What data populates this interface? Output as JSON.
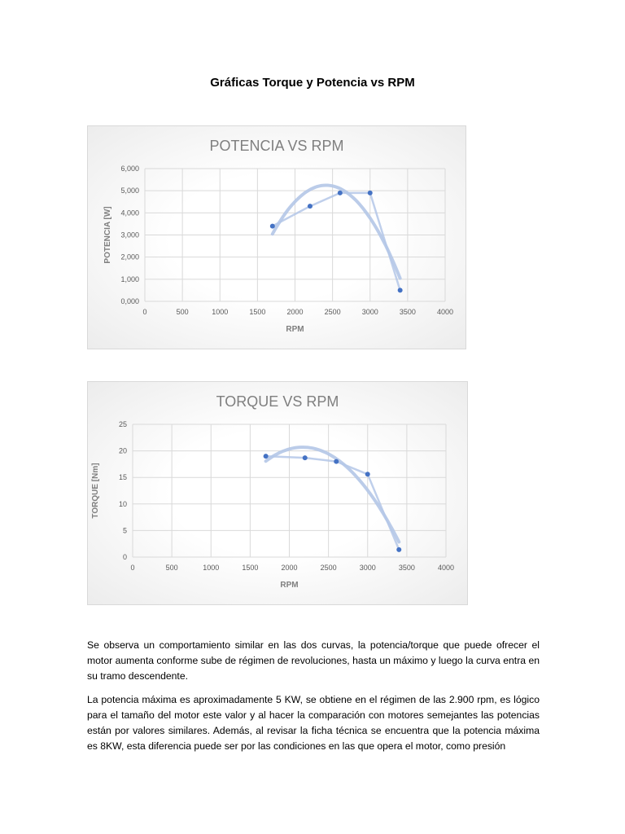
{
  "document": {
    "title": "Gráficas Torque y Potencia vs RPM",
    "paragraphs": [
      "Se observa un comportamiento similar en las dos curvas, la potencia/torque que puede ofrecer el motor aumenta conforme sube de régimen de revoluciones, hasta un máximo y luego la curva entra en su tramo descendente.",
      "La potencia máxima es aproximadamente 5 KW, se obtiene en el régimen de las 2.900 rpm, es lógico para el tamaño del motor este valor y al hacer la comparación con motores semejantes las potencias están por valores similares. Además, al revisar la ficha técnica se encuentra que la potencia máxima es 8KW, esta diferencia puede ser por las condiciones en las que opera el motor, como presión"
    ]
  },
  "chart_data": [
    {
      "type": "scatter",
      "title": "POTENCIA VS RPM",
      "xlabel": "RPM",
      "ylabel": "POTENCIA [W]",
      "xlim": [
        0,
        4000
      ],
      "ylim": [
        0,
        6000
      ],
      "xticks": [
        0,
        500,
        1000,
        1500,
        2000,
        2500,
        3000,
        3500,
        4000
      ],
      "yticks": [
        0,
        1000,
        2000,
        3000,
        4000,
        5000,
        6000
      ],
      "xtick_labels": [
        "0",
        "500",
        "1000",
        "1500",
        "2000",
        "2500",
        "3000",
        "3500",
        "4000"
      ],
      "ytick_labels": [
        "0,000",
        "1,000",
        "2,000",
        "3,000",
        "4,000",
        "5,000",
        "6,000"
      ],
      "grid": true,
      "marker_color": "#4472c4",
      "line_color": "#b4c7e7",
      "trendline": "polynomial",
      "x": [
        1700,
        2200,
        2600,
        3000,
        3400
      ],
      "y": [
        3400,
        4300,
        4900,
        4900,
        500
      ]
    },
    {
      "type": "scatter",
      "title": "TORQUE VS RPM",
      "xlabel": "RPM",
      "ylabel": "TORQUE [Nm]",
      "xlim": [
        0,
        4000
      ],
      "ylim": [
        0,
        25
      ],
      "xticks": [
        0,
        500,
        1000,
        1500,
        2000,
        2500,
        3000,
        3500,
        4000
      ],
      "yticks": [
        0,
        5,
        10,
        15,
        20,
        25
      ],
      "xtick_labels": [
        "0",
        "500",
        "1000",
        "1500",
        "2000",
        "2500",
        "3000",
        "3500",
        "4000"
      ],
      "ytick_labels": [
        "0",
        "5",
        "10",
        "15",
        "20",
        "25"
      ],
      "grid": true,
      "marker_color": "#4472c4",
      "line_color": "#b4c7e7",
      "trendline": "polynomial",
      "x": [
        1700,
        2200,
        2600,
        3000,
        3400
      ],
      "y": [
        19,
        18.7,
        18,
        15.6,
        1.4
      ]
    }
  ]
}
